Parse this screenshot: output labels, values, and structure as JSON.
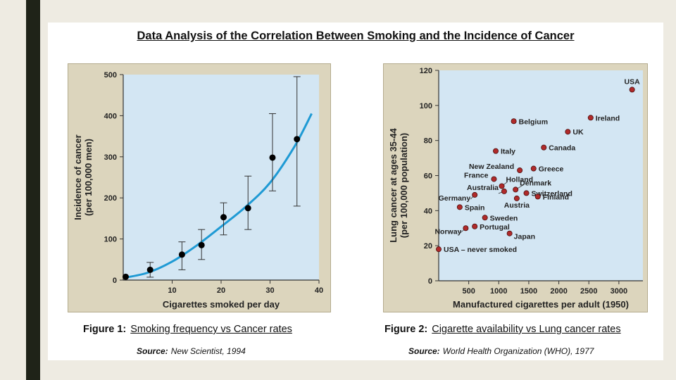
{
  "title": "Data Analysis of the Correlation Between Smoking and the Incidence of Cancer",
  "colors": {
    "plot_bg": "#d3e6f3",
    "panel_bg": "#dcd5bd",
    "curve": "#1f9ad4",
    "point1": "#000000",
    "point2": "#b02a2a"
  },
  "figure1": {
    "caption_label": "Figure 1:",
    "caption_text": "Smoking frequency vs Cancer rates",
    "source_label": "Source:",
    "source_text": "New Scientist, 1994",
    "chart_data": {
      "type": "scatter",
      "xlabel": "Cigarettes smoked per day",
      "ylabel_line1": "Incidence of cancer",
      "ylabel_line2": "(per 100,000 men)",
      "xlim": [
        0,
        40
      ],
      "ylim": [
        0,
        500
      ],
      "x_ticks": [
        10,
        20,
        30,
        40
      ],
      "y_ticks": [
        0,
        100,
        200,
        300,
        400,
        500
      ],
      "points": [
        {
          "x": 0.5,
          "y": 8
        },
        {
          "x": 5.5,
          "y": 25,
          "err_low": 7,
          "err_high": 43
        },
        {
          "x": 12,
          "y": 62,
          "err_low": 25,
          "err_high": 93
        },
        {
          "x": 16,
          "y": 85,
          "err_low": 50,
          "err_high": 123
        },
        {
          "x": 20.5,
          "y": 153,
          "err_low": 110,
          "err_high": 188
        },
        {
          "x": 25.5,
          "y": 175,
          "err_low": 123,
          "err_high": 253
        },
        {
          "x": 30.5,
          "y": 298,
          "err_low": 217,
          "err_high": 405
        },
        {
          "x": 35.5,
          "y": 343,
          "err_low": 180,
          "err_high": 495
        }
      ],
      "trend_line": [
        {
          "x": 0,
          "y": 5
        },
        {
          "x": 5,
          "y": 18
        },
        {
          "x": 10,
          "y": 45
        },
        {
          "x": 15,
          "y": 84
        },
        {
          "x": 20,
          "y": 130
        },
        {
          "x": 25,
          "y": 178
        },
        {
          "x": 30,
          "y": 237
        },
        {
          "x": 35,
          "y": 325
        },
        {
          "x": 38.5,
          "y": 405
        }
      ]
    }
  },
  "figure2": {
    "caption_label": "Figure 2:",
    "caption_text": "Cigarette availability vs Lung cancer rates",
    "source_label": "Source:",
    "source_text": "World Health Organization (WHO), 1977",
    "chart_data": {
      "type": "scatter",
      "xlabel": "Manufactured cigarettes per adult (1950)",
      "ylabel_line1": "Lung cancer at ages 35-44",
      "ylabel_line2": "(per 100,000 population)",
      "xlim": [
        0,
        3400
      ],
      "ylim": [
        0,
        120
      ],
      "x_ticks": [
        500,
        1000,
        1500,
        2000,
        2500,
        3000
      ],
      "y_ticks": [
        0,
        20,
        40,
        60,
        80,
        100,
        120
      ],
      "points": [
        {
          "label": "USA",
          "x": 3220,
          "y": 109,
          "label_pos": "above"
        },
        {
          "label": "Ireland",
          "x": 2530,
          "y": 93,
          "label_pos": "right"
        },
        {
          "label": "Belgium",
          "x": 1250,
          "y": 91,
          "label_pos": "right"
        },
        {
          "label": "UK",
          "x": 2150,
          "y": 85,
          "label_pos": "right"
        },
        {
          "label": "Canada",
          "x": 1750,
          "y": 76,
          "label_pos": "right"
        },
        {
          "label": "Italy",
          "x": 950,
          "y": 74,
          "label_pos": "right"
        },
        {
          "label": "New Zealand",
          "x": 1350,
          "y": 63,
          "label_pos": "left"
        },
        {
          "label": "Greece",
          "x": 1580,
          "y": 64,
          "label_pos": "right"
        },
        {
          "label": "France",
          "x": 920,
          "y": 58,
          "label_pos": "left"
        },
        {
          "label": "Holland",
          "x": 1050,
          "y": 54,
          "label_pos": "above-right"
        },
        {
          "label": "Denmark",
          "x": 1280,
          "y": 52,
          "label_pos": "above-right"
        },
        {
          "label": "Australia",
          "x": 1090,
          "y": 51,
          "label_pos": "left"
        },
        {
          "label": "Switzerland",
          "x": 1460,
          "y": 50,
          "label_pos": "right"
        },
        {
          "label": "Finland",
          "x": 1650,
          "y": 48,
          "label_pos": "right"
        },
        {
          "label": "Germany",
          "x": 600,
          "y": 49,
          "label_pos": "below-left"
        },
        {
          "label": "Austria",
          "x": 1300,
          "y": 47,
          "label_pos": "below"
        },
        {
          "label": "Spain",
          "x": 350,
          "y": 42,
          "label_pos": "right"
        },
        {
          "label": "Sweden",
          "x": 770,
          "y": 36,
          "label_pos": "right"
        },
        {
          "label": "Portugal",
          "x": 600,
          "y": 31,
          "label_pos": "right"
        },
        {
          "label": "Norway",
          "x": 450,
          "y": 30,
          "label_pos": "below-left"
        },
        {
          "label": "Japan",
          "x": 1180,
          "y": 27,
          "label_pos": "below-right"
        },
        {
          "label": "USA – never smoked",
          "x": 0,
          "y": 18,
          "label_pos": "right"
        }
      ]
    }
  }
}
